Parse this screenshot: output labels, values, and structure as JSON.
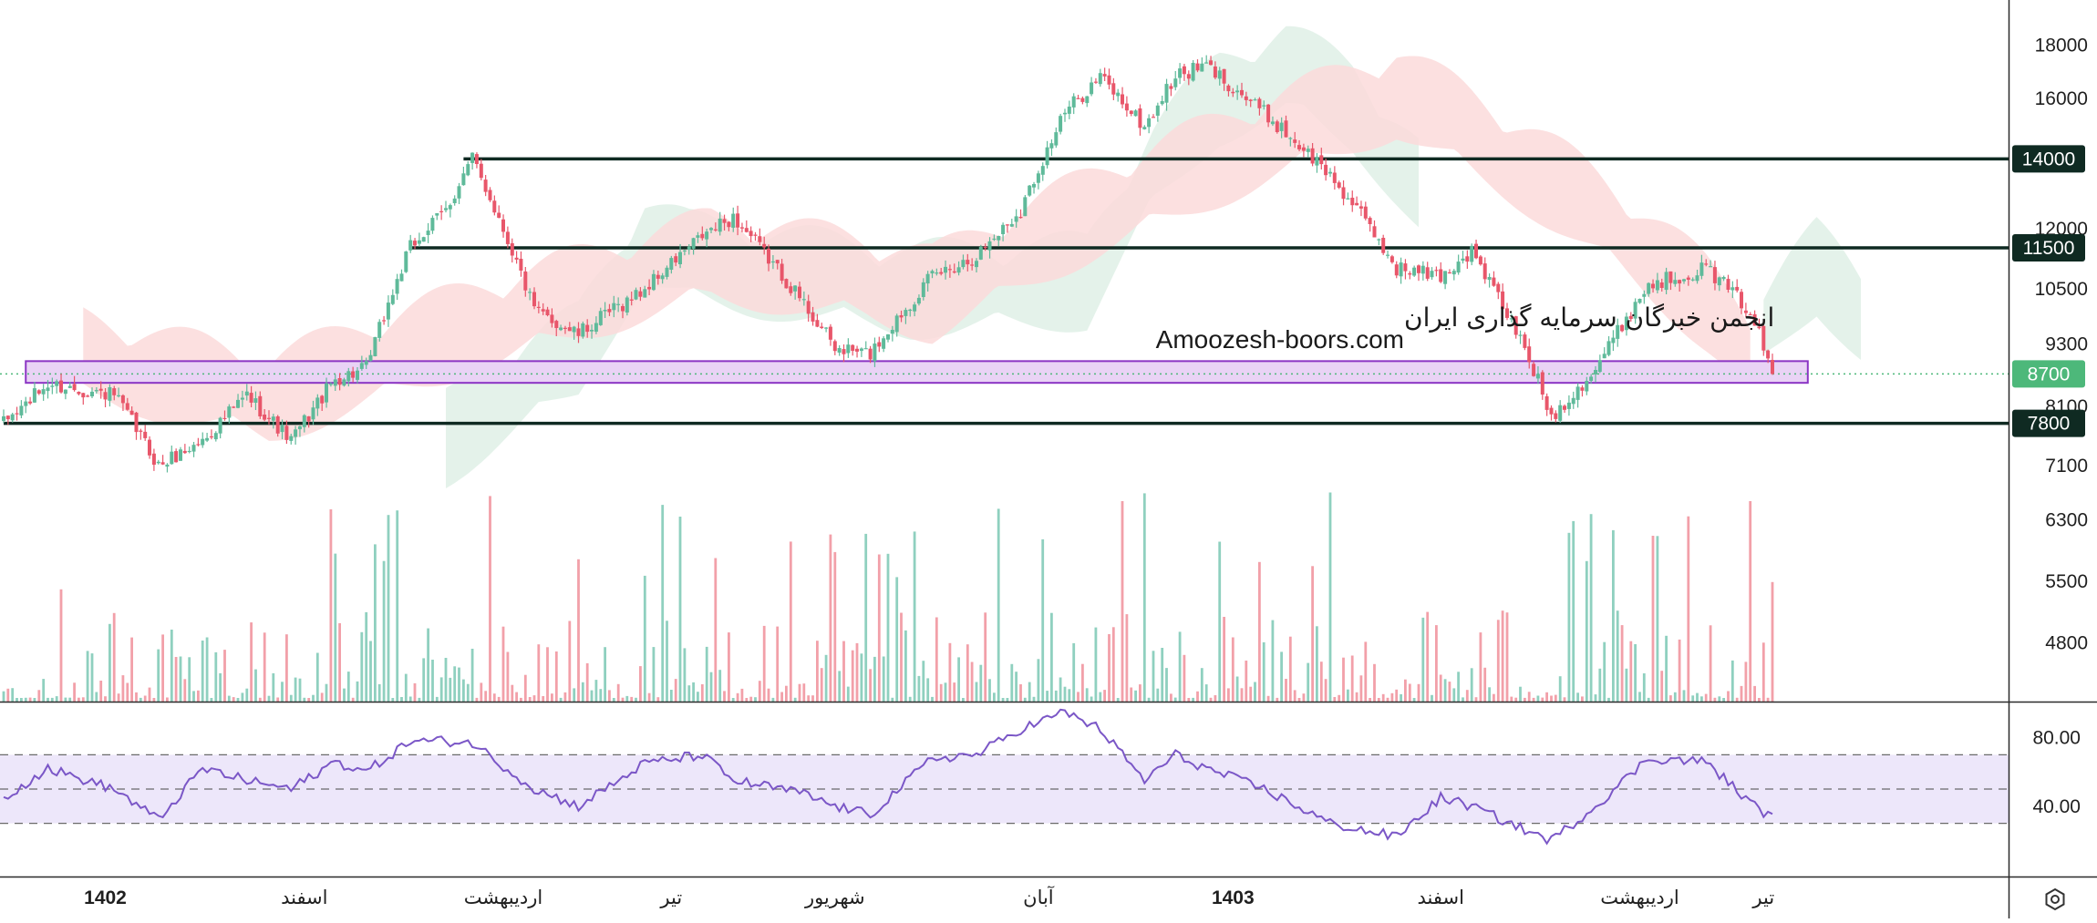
{
  "chart_data": {
    "type": "candlestick",
    "price_axis": {
      "scale": "log",
      "ticks": [
        "18000",
        "16000",
        "12000",
        "10500",
        "9300",
        "8100",
        "7100",
        "6300",
        "5500",
        "4800"
      ],
      "ylim": [
        4300,
        19500
      ]
    },
    "rsi_axis": {
      "ticks": [
        "80.00",
        "40.00"
      ],
      "ylim": [
        0,
        100
      ],
      "band": [
        30,
        70
      ],
      "midline": 50
    },
    "time_axis": {
      "labels": [
        "1402",
        "اسفند",
        "اردیبهشت",
        "تیر",
        "شهریور",
        "آبان",
        "1403",
        "اسفند",
        "اردیبهشت",
        "تیر"
      ],
      "bold": [
        "1402",
        "1403"
      ]
    },
    "levels": [
      {
        "value": 14000,
        "label": "14000",
        "start_index": 104
      },
      {
        "value": 11500,
        "label": "11500",
        "start_index": 92
      },
      {
        "value": 7800,
        "label": "7800",
        "start_index": 0
      }
    ],
    "last_price": {
      "value": 8700,
      "label": "8700"
    },
    "zone": {
      "low": 8530,
      "high": 8950,
      "start_index": 5,
      "end_index": 408
    },
    "watermark": {
      "line1": "انجمن خبرگان سرمایه گذاری ایران",
      "line2": "Amoozesh-boors.com"
    },
    "colors": {
      "up": "#5fba9a",
      "down": "#e8566a",
      "volume_up": "#8fd0bf",
      "volume_down": "#f2a0a9",
      "level": "#0f2a22",
      "badge_last": "#4db87a",
      "zone_fill": "#e9d3f5",
      "zone_stroke": "#8b35c4",
      "cloud_green": "#dff0e6",
      "cloud_red": "#fbdada",
      "rsi_line": "#7b57c7",
      "rsi_band": "#ede7fa"
    },
    "close_anchors": [
      [
        0,
        7800
      ],
      [
        10,
        8500
      ],
      [
        25,
        8300
      ],
      [
        35,
        7100
      ],
      [
        45,
        7500
      ],
      [
        55,
        8300
      ],
      [
        65,
        7500
      ],
      [
        75,
        8600
      ],
      [
        82,
        8800
      ],
      [
        92,
        11500
      ],
      [
        100,
        12500
      ],
      [
        106,
        14000
      ],
      [
        120,
        10000
      ],
      [
        130,
        9500
      ],
      [
        145,
        10500
      ],
      [
        158,
        11800
      ],
      [
        165,
        12300
      ],
      [
        180,
        10300
      ],
      [
        188,
        9200
      ],
      [
        196,
        9100
      ],
      [
        210,
        10800
      ],
      [
        220,
        11300
      ],
      [
        230,
        12500
      ],
      [
        240,
        15500
      ],
      [
        248,
        16800
      ],
      [
        258,
        15000
      ],
      [
        265,
        16800
      ],
      [
        272,
        17200
      ],
      [
        285,
        15500
      ],
      [
        300,
        13500
      ],
      [
        315,
        11000
      ],
      [
        325,
        10800
      ],
      [
        332,
        11400
      ],
      [
        345,
        9000
      ],
      [
        350,
        7900
      ],
      [
        360,
        8800
      ],
      [
        372,
        10600
      ],
      [
        385,
        11000
      ],
      [
        395,
        10000
      ],
      [
        400,
        8700
      ]
    ],
    "rsi_anchors": [
      [
        0,
        45
      ],
      [
        10,
        62
      ],
      [
        25,
        50
      ],
      [
        35,
        32
      ],
      [
        45,
        62
      ],
      [
        55,
        55
      ],
      [
        65,
        50
      ],
      [
        75,
        66
      ],
      [
        82,
        60
      ],
      [
        92,
        78
      ],
      [
        100,
        78
      ],
      [
        106,
        77
      ],
      [
        120,
        50
      ],
      [
        130,
        40
      ],
      [
        145,
        65
      ],
      [
        158,
        70
      ],
      [
        165,
        55
      ],
      [
        180,
        48
      ],
      [
        188,
        40
      ],
      [
        196,
        35
      ],
      [
        210,
        68
      ],
      [
        220,
        70
      ],
      [
        230,
        85
      ],
      [
        240,
        95
      ],
      [
        248,
        85
      ],
      [
        258,
        55
      ],
      [
        265,
        70
      ],
      [
        272,
        62
      ],
      [
        285,
        50
      ],
      [
        300,
        30
      ],
      [
        315,
        22
      ],
      [
        325,
        45
      ],
      [
        332,
        40
      ],
      [
        345,
        25
      ],
      [
        350,
        20
      ],
      [
        360,
        40
      ],
      [
        372,
        68
      ],
      [
        385,
        66
      ],
      [
        395,
        42
      ],
      [
        400,
        33
      ]
    ],
    "cloud_green_anchors": [
      [
        100,
        7400
      ],
      [
        130,
        9000
      ],
      [
        145,
        11500
      ],
      [
        155,
        11000
      ],
      [
        205,
        10300
      ],
      [
        245,
        10500
      ],
      [
        260,
        13500
      ],
      [
        275,
        15800
      ],
      [
        290,
        16800
      ],
      [
        305,
        15500
      ],
      [
        320,
        13000
      ]
    ],
    "cloud_red_anchors": [
      [
        18,
        8900
      ],
      [
        45,
        8400
      ],
      [
        60,
        8100
      ],
      [
        160,
        11100
      ],
      [
        195,
        10600
      ],
      [
        210,
        10200
      ],
      [
        315,
        16000
      ],
      [
        345,
        13500
      ],
      [
        365,
        11800
      ],
      [
        385,
        10000
      ],
      [
        395,
        9000
      ]
    ],
    "cloud_green_tail": [
      [
        398,
        9500
      ],
      [
        410,
        10800
      ],
      [
        420,
        9800
      ]
    ]
  }
}
